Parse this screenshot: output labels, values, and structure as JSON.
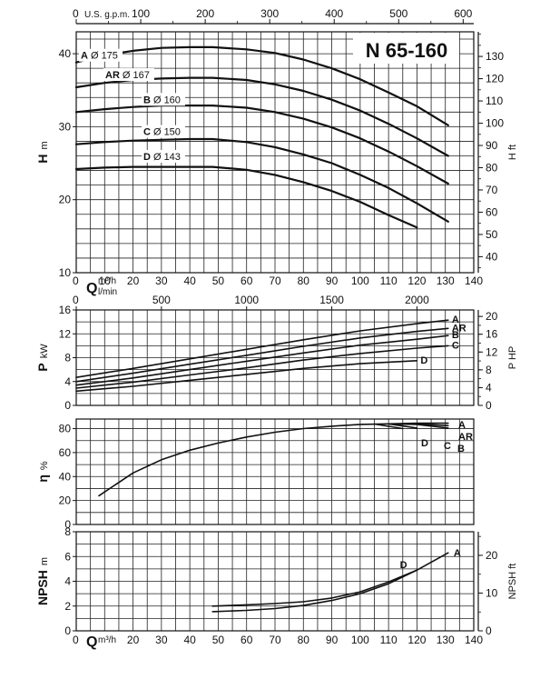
{
  "title": "N 65-160",
  "top_axis": {
    "label": "U.S. g.p.m.",
    "ticks": [
      0,
      100,
      200,
      300,
      400,
      500,
      600
    ]
  },
  "flow_axis_m3h": {
    "label_q": "Q",
    "label_unit": "m³/h",
    "ticks": [
      0,
      10,
      20,
      30,
      40,
      50,
      60,
      70,
      80,
      90,
      100,
      110,
      120,
      130,
      140
    ]
  },
  "flow_axis_lmin": {
    "label_q": "Q",
    "label_unit": "l/min",
    "ticks": [
      0,
      500,
      1000,
      1500,
      2000
    ]
  },
  "chart_data": [
    {
      "type": "line",
      "name": "head",
      "ylabel": "H",
      "ylabel_unit": "m",
      "ylabel_right": "H ft",
      "ylim": [
        10,
        43
      ],
      "yticks": [
        10,
        20,
        30,
        40
      ],
      "yticks_right": [
        40,
        50,
        60,
        70,
        80,
        90,
        100,
        110,
        120,
        130
      ],
      "xlim": [
        0,
        140
      ],
      "series": [
        {
          "name": "A",
          "diameter": "Ø 175",
          "x": [
            0,
            10,
            20,
            30,
            40,
            48,
            60,
            70,
            80,
            90,
            100,
            110,
            120,
            131
          ],
          "y": [
            38.8,
            39.8,
            40.4,
            40.8,
            40.9,
            40.9,
            40.6,
            40.1,
            39.2,
            38.0,
            36.5,
            34.7,
            32.8,
            30.2
          ]
        },
        {
          "name": "AR",
          "diameter": "Ø 167",
          "x": [
            0,
            10,
            20,
            30,
            40,
            48,
            60,
            70,
            80,
            90,
            100,
            110,
            120,
            131
          ],
          "y": [
            35.4,
            36.0,
            36.4,
            36.6,
            36.7,
            36.7,
            36.4,
            35.8,
            34.9,
            33.7,
            32.2,
            30.4,
            28.4,
            26.0
          ]
        },
        {
          "name": "B",
          "diameter": "Ø 160",
          "x": [
            0,
            10,
            20,
            30,
            40,
            48,
            60,
            70,
            80,
            90,
            100,
            110,
            120,
            131
          ],
          "y": [
            32.0,
            32.4,
            32.7,
            32.9,
            32.9,
            32.9,
            32.6,
            32.0,
            31.1,
            29.9,
            28.4,
            26.6,
            24.6,
            22.2
          ]
        },
        {
          "name": "C",
          "diameter": "Ø 150",
          "x": [
            0,
            10,
            20,
            30,
            40,
            48,
            60,
            70,
            80,
            90,
            100,
            110,
            120,
            131
          ],
          "y": [
            27.6,
            27.9,
            28.1,
            28.2,
            28.3,
            28.3,
            27.9,
            27.2,
            26.2,
            25.0,
            23.4,
            21.6,
            19.5,
            17.0
          ]
        },
        {
          "name": "D",
          "diameter": "Ø 143",
          "x": [
            0,
            10,
            20,
            30,
            40,
            48,
            60,
            70,
            80,
            90,
            100,
            110,
            120
          ],
          "y": [
            24.2,
            24.4,
            24.5,
            24.5,
            24.5,
            24.5,
            24.1,
            23.4,
            22.4,
            21.2,
            19.7,
            17.9,
            16.2
          ]
        }
      ]
    },
    {
      "type": "line",
      "name": "power",
      "ylabel": "P",
      "ylabel_unit": "kW",
      "ylabel_right": "P HP",
      "ylim": [
        0,
        16
      ],
      "yticks": [
        0,
        4,
        8,
        12,
        16
      ],
      "yticks_right": [
        0,
        4,
        8,
        12,
        16,
        20
      ],
      "xlim": [
        0,
        140
      ],
      "series": [
        {
          "name": "A",
          "x": [
            0,
            20,
            40,
            60,
            80,
            100,
            120,
            131
          ],
          "y": [
            4.7,
            6.2,
            7.8,
            9.4,
            11.0,
            12.5,
            13.7,
            14.3
          ]
        },
        {
          "name": "AR",
          "x": [
            0,
            20,
            40,
            60,
            80,
            100,
            120,
            131
          ],
          "y": [
            4.0,
            5.4,
            6.9,
            8.4,
            9.9,
            11.3,
            12.4,
            12.9
          ]
        },
        {
          "name": "B",
          "x": [
            0,
            20,
            40,
            60,
            80,
            100,
            120,
            131
          ],
          "y": [
            3.4,
            4.6,
            6.0,
            7.4,
            8.8,
            10.1,
            11.1,
            11.7
          ]
        },
        {
          "name": "C",
          "x": [
            0,
            20,
            40,
            60,
            80,
            100,
            120,
            131
          ],
          "y": [
            2.9,
            3.9,
            5.1,
            6.3,
            7.6,
            8.7,
            9.6,
            10.0
          ]
        },
        {
          "name": "D",
          "x": [
            0,
            20,
            40,
            60,
            80,
            100,
            120
          ],
          "y": [
            2.4,
            3.2,
            4.2,
            5.2,
            6.2,
            7.0,
            7.5
          ]
        }
      ]
    },
    {
      "type": "line",
      "name": "efficiency",
      "ylabel": "η",
      "ylabel_unit": "%",
      "ylim": [
        0,
        88
      ],
      "yticks": [
        0,
        20,
        40,
        60,
        80
      ],
      "xlim": [
        0,
        140
      ],
      "series": [
        {
          "name": "common",
          "x": [
            8,
            20,
            30,
            40,
            50,
            60,
            70,
            80,
            90,
            100,
            110
          ],
          "y": [
            24,
            43,
            54,
            62,
            68,
            73,
            77,
            80,
            82,
            83.5,
            84
          ]
        },
        {
          "name": "A",
          "x": [
            110,
            120,
            131
          ],
          "y": [
            84,
            84.6,
            84.5
          ]
        },
        {
          "name": "AR",
          "x": [
            110,
            120,
            131
          ],
          "y": [
            84,
            84,
            82.5
          ]
        },
        {
          "name": "B",
          "x": [
            110,
            120,
            131
          ],
          "y": [
            84,
            83.5,
            80.5
          ]
        },
        {
          "name": "C",
          "x": [
            110,
            120
          ],
          "y": [
            84,
            80.5
          ]
        },
        {
          "name": "D",
          "x": [
            105,
            115
          ],
          "y": [
            83.8,
            80
          ]
        }
      ]
    },
    {
      "type": "line",
      "name": "npsh",
      "ylabel": "NPSH",
      "ylabel_unit": "m",
      "ylabel_right": "NPSH ft",
      "ylim": [
        0,
        8
      ],
      "yticks": [
        0,
        2,
        4,
        6,
        8
      ],
      "yticks_right": [
        0,
        10,
        20
      ],
      "xlim": [
        0,
        140
      ],
      "series": [
        {
          "name": "A",
          "x": [
            48,
            60,
            70,
            80,
            90,
            100,
            110,
            120,
            131
          ],
          "y": [
            1.55,
            1.65,
            1.8,
            2.05,
            2.45,
            3.0,
            3.8,
            4.9,
            6.3
          ]
        },
        {
          "name": "D",
          "x": [
            48,
            60,
            70,
            80,
            90,
            100,
            110,
            120
          ],
          "y": [
            2.0,
            2.1,
            2.2,
            2.35,
            2.65,
            3.15,
            3.95,
            4.9
          ]
        }
      ]
    }
  ]
}
